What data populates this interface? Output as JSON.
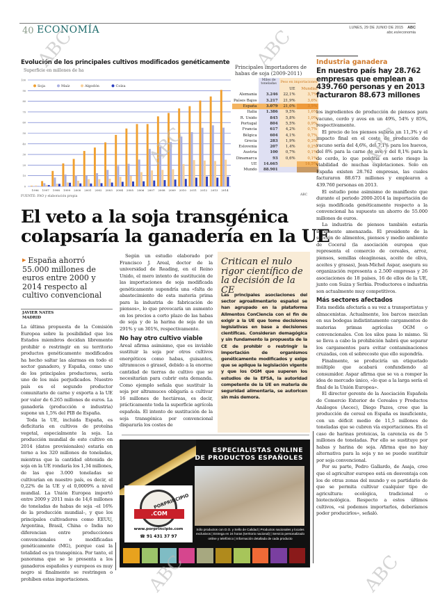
{
  "header": {
    "page_number": "40",
    "section": "ECONOMÍA",
    "date": "LUNES, 29 DE JUNIO DE 2015",
    "brand": "ABC",
    "url": "abc.es/economia"
  },
  "chart_data": {
    "type": "bar",
    "title": "Evolución de los principales cultivos modificados genéticamente",
    "subtitle": "Superficie en millones de ha",
    "source": "FUENTE: FAO y elaboración propia",
    "ylim": [
      0,
      100
    ],
    "yticks": [
      0,
      10,
      20,
      30,
      40,
      50,
      60,
      70,
      80,
      90,
      100
    ],
    "grid": true,
    "legend_position": "top-left",
    "categories": [
      "1996",
      "1997",
      "1998",
      "1999",
      "2000",
      "2001",
      "2002",
      "2003",
      "2004",
      "2005",
      "2006",
      "2007",
      "2008",
      "2009",
      "2010",
      "2011",
      "2012",
      "2013",
      "2014"
    ],
    "series": [
      {
        "name": "Soja",
        "color": "#f0a030",
        "values": [
          0.5,
          5,
          14.5,
          21.6,
          25.8,
          33.3,
          36.5,
          41.4,
          48.4,
          54.4,
          58.6,
          58.6,
          65.8,
          69,
          73.3,
          75.4,
          80.7,
          84.5,
          90.7
        ]
      },
      {
        "name": "Maíz",
        "color": "#a9afe0",
        "values": [
          0.3,
          3,
          8.3,
          11.1,
          10.3,
          9.8,
          12.4,
          15.5,
          19.3,
          21.2,
          25.2,
          35.2,
          37.3,
          41.7,
          46.8,
          51,
          55.1,
          57.4,
          55.2
        ]
      },
      {
        "name": "Algodón",
        "color": "#f7cf98",
        "values": [
          0.8,
          1.4,
          2.5,
          3.7,
          5.3,
          6.8,
          6.8,
          7.2,
          9,
          9.8,
          13.4,
          15,
          15.5,
          16.1,
          21,
          24.7,
          24.3,
          23.9,
          25.1
        ]
      },
      {
        "name": "Colza",
        "color": "#2b3fbf",
        "values": [
          0.1,
          1.2,
          2.4,
          3.4,
          2.8,
          2.7,
          3,
          3.6,
          4.3,
          4.6,
          4.8,
          5.5,
          5.9,
          6.4,
          7,
          8.2,
          9.2,
          8.2,
          9
        ]
      }
    ]
  },
  "importers": {
    "title": "Principales importadores de habas de soja (2009-2011)",
    "headers": {
      "tonnes": "Miles de toneladas",
      "share": "Peso en importaciones",
      "eu": "UE",
      "world": "Mundial"
    },
    "rows": [
      {
        "country": "Alemania",
        "tonnes": "3.246",
        "eu": "22,1%",
        "world": "3,7%"
      },
      {
        "country": "Países Bajos",
        "tonnes": "3.217",
        "eu": "21,9%",
        "world": "3,6%"
      },
      {
        "country": "España",
        "tonnes": "3.079",
        "eu": "21,0%",
        "world": "3,5%"
      },
      {
        "country": "Italia",
        "tonnes": "1.386",
        "eu": "9,5%",
        "world": "1,6%"
      },
      {
        "country": "R. Unido",
        "tonnes": "845",
        "eu": "5,8%",
        "world": "1,0%"
      },
      {
        "country": "Portugal",
        "tonnes": "804",
        "eu": "5,5%",
        "world": "0,9%"
      },
      {
        "country": "Francia",
        "tonnes": "617",
        "eu": "4,2%",
        "world": "0,7%"
      },
      {
        "country": "Bélgica",
        "tonnes": "604",
        "eu": "4,1%",
        "world": "0,7%"
      },
      {
        "country": "Grecia",
        "tonnes": "283",
        "eu": "1,9%",
        "world": "0,3%"
      },
      {
        "country": "Eslovenia",
        "tonnes": "207",
        "eu": "1,4%",
        "world": "0,2%"
      },
      {
        "country": "Austria",
        "tonnes": "100",
        "eu": "0,7%",
        "world": "0,1%"
      },
      {
        "country": "Dinamarca",
        "tonnes": "93",
        "eu": "0,6%",
        "world": "0,1%"
      },
      {
        "country": "UE",
        "tonnes": "14.665",
        "eu": "",
        "world": "16,5%"
      },
      {
        "country": "Mundo",
        "tonnes": "88.901",
        "eu": "",
        "world": ""
      }
    ],
    "credit": "ABC"
  },
  "article": {
    "headline_1": "El veto a la soja transgénica",
    "headline_2": "colapsaría la ganadería en la UE",
    "subhead": "España ahorró 55.000 millones de euros entre 2000 y 2014 respecto al cultivo convencional",
    "author": "JAVIER NATES",
    "location": "MADRID",
    "col1": [
      "La última propuesta de la Comisión Europea sobre la posibilidad que los Estados miembros decidan libremente prohibir o restringir en su territorio productos genéticamente modificados ha hecho saltar las alarmas en todo el sector ganadero, y España, como uno de los principales productores, sería uno de los más perjudicados. Nuestro país es el segundo productor comunitario de carne y exporta a la UE por valor de 6.265 millones de euros. La ganadería (producción e industria) supone un 1,5% del PIB de España.",
      "Toda la UE, incluida España, es deficitaria en cultivos de proteína vegetal, especialmente la soja. La producción mundial de este cultivo en 2014 (datos provisionales) estaría en torno a los 320 millones de toneladas, mientras que la cantidad obtenida de soja en la UE rondaría los 1,34 millones, de las que 3.000 toneladas se cultivarían en nuestro país, es decir, el 0,22% de la UE y el 0,0009% a nivel mundial. La Unión Europea importó entre 2009 y 2011 más de 14,6 millones de toneladas de habas de soja –el 16% de la producción mundial–, y que los principales cultivadores como EEUU, Argentina, Brasil, China o India no diferencian entre producciones convencionales o modificadas genéticamente (MG), porque casi la totalidad es ya transgénica. Por tanto, el panorama que se le presenta a los ganaderos españoles y europeos es muy negro si finalmente se restringen o prohíben estas importaciones."
    ],
    "col2_p1": "Según un estudio elaborado por Francisco J. Areal, doctor de la universidad de Reading, en el Reino Unido, el mero intento de sustitución de las importaciones de soja modificada genéticamente supondría una «falta de abastecimiento de esta materia prima para la industria de fabricación de piensos», lo que provocaría un aumento en los precios a corto plazo de las habas de soja y de la harina de soja de un 291% y un 301%, respectivamente.",
    "col2_heading": "No hay otro cultivo viable",
    "col2_p2": "Areal afirma asimismo, que es inviable sustituir la soja por otros cultivos energéticos como habas, guisantes, altramuces o girasol, debido a la enorme cantidad de tierras de cultivo que se necesitarían para cubrir esta demanda. Como ejemplo señala que sustituir la soja por altramuces obligaría a cultivar 16 millones de hectáreas, es decir, prácticamente toda la superficie agrícola española. El intento de sustitución de la soja transgénica por convencional dispararía los costes de",
    "box_title": "Critican el nulo rigor científico de la decisión de la CE",
    "box_text": "Las principales asociaciones del sector agroalimentario español se han agrupado en la plataforma Alimentos ConCiencia con el fin de exigir a la UE que tome decisiones legislativas en base a decisiones científicas. Consideran demagógica y sin fundamento la propuesta de la CE de prohibir o restringir la importación de organismos genéticamente modificados y exige que se aplique la legislación vigente y que los OGM que superen los estudios de la EFSA, la autoridad competente de la UE en materia de seguridad alimentaria, se autoricen sin más demora."
  },
  "sidebar": {
    "kicker": "Industria ganadera",
    "headline": "En nuestro país hay 28.762 empresas que emplean a 439.760 personas y en 2013 facturaron 88.673 millones",
    "p0": "los ingredientes de producción de piensos para vacuno, cerdo y aves en un 49%, 54% y 85%, respectivamente.",
    "p1": "El precio de los piensos subiría un 11,3% y el impacto final en el coste de producción de vacuno sería del 4,6%, del 7,1% para los huevos, del 8% para la carne de ave y del 8,1% para la de cerdo, lo que pondría en serio riesgo la viabilidad de muchas explotaciones. Solo en España existen 28.762 empresas, las cuales facturaron 88.673 millones y emplearon a 439.760 personas en 2013.",
    "p2": "El estudio pone asimismo de manifiesto que durante el periodo 2000-2014 la importación de soja modificada genéticamente respecto a la convencional ha supuesto un ahorro de 55.000 millones de euros.",
    "p3": "La industria de piensos también estaría seriamente amenazada. El presidente de la sección de alimentos, piensos y medio ambiente de Coceral (la asociación europea que representa el comercio de cereales, arroz, piensos, semillas oleaginosas, aceite de oliva, aceites y grasas), Jean-Michel Aspar, asegura su organización representa a 2.500 empresas y 26 asociaciones de 18 países, 16 de ellos de la UE, junto con Suiza y Serbia. Productores e industria son actualmente muy competitivos.",
    "heading": "Más sectores afectados",
    "p4": "Esta medida afectaría a su vez a transportistas y almacenistas. Actualmente, los barcos mezclan en sus bodegas indistintamente cargamentos de materias primas agrícolas OGM o convencionales. Con los silos pasa lo mismo. Si se lleva a cabo la prohibición habrá que separar los cargamentos para evitar contaminaciones cruzadas, con el sobrecoste que ello supondría.",
    "p5": "Finalmente, se produciría un etiquetado múltiple que acabará confundiendo al consumidor. Aspar afirma que se va a romper la idea de mercado único, «lo que a la larga sería el final de la Unión Europea».",
    "p6": "El director gerente de la Asociación Española de Comercio Exterior de Cereales y Productos Análogos (Aecec), Diego Pazos, cree que la producción de cereal en España es insuficiente, con un déficit medio de 11,5 millones de toneladas que se cubren vía exportaciones. En el caso de harinas proteicas, la carencia es de 5 millones de toneladas. Por ello se sustituye por habas y harina de soja. Afirma que no hay alternativa para la soja y no se puede sustituir por soja convencional.",
    "p7": "Por su parte, Pedro Gallardo, de Asaja, cree que el agricultor europeo está en desventaja con los de otras zonas del mundo y es partidario de que se permita cultivar cualquier tipo de agricultura: ecológica, tradicional o biotecnológica. Respecto a estos últimos cultivos, «si podemos importarlos, deberíamos poder producirlos», señaló."
  },
  "ad": {
    "title_1": "ESPECIALISTAS ONLINE",
    "title_2": "DE PRODUCTOS ESPAÑOLES",
    "logo_text": "PORPRINCIPIO",
    "logo_domain": ".COM",
    "url": "www.porprincipio.com",
    "phone": "☎ 91 431 37 97",
    "description": "Sólo productos con D.O. y Sello de Calidad | Productos nacionales y locales exclusivos | Entrega en 24 horas (territorio nacional) | Servicio personalizado online y telefónico | Información detallada de cada producto",
    "swatch_colors": [
      "#e8a21e",
      "#9cc46a",
      "#7fbcc4",
      "#d6468e",
      "#a7a880",
      "#b08a1c",
      "#a7c55a",
      "#f06a36",
      "#7a3fa0",
      "#8a1a1a"
    ]
  },
  "watermark": "ABC"
}
